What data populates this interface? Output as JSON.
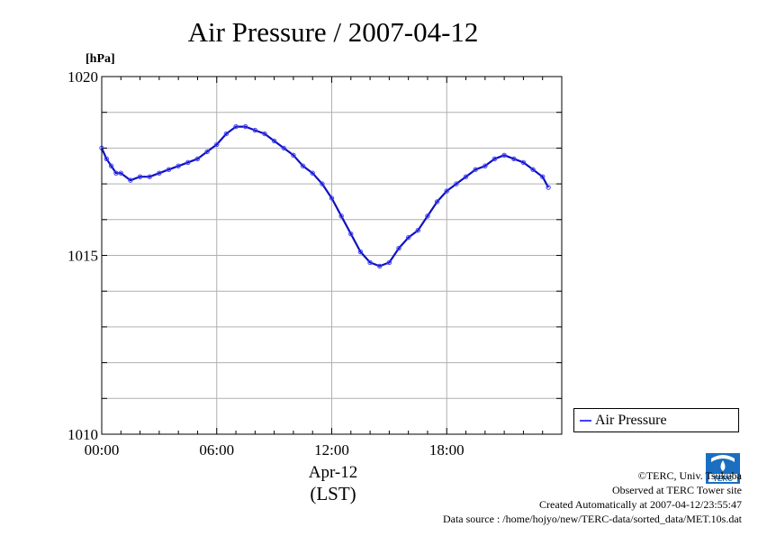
{
  "chart_data": {
    "type": "line",
    "title": "Air Pressure / 2007-04-12",
    "ylabel": "[hPa]",
    "xlabel_lines": [
      "Apr-12",
      "(LST)"
    ],
    "ylim": [
      1010,
      1020
    ],
    "xlim": [
      0,
      24
    ],
    "x_ticks": [
      0,
      6,
      12,
      18
    ],
    "x_tick_labels": [
      "00:00",
      "06:00",
      "12:00",
      "18:00"
    ],
    "y_ticks": [
      1010,
      1015,
      1020
    ],
    "y_tick_labels": [
      "1010",
      "1015",
      "1020"
    ],
    "y_grid_step": 1,
    "grid": true,
    "legend_position": "right",
    "series": [
      {
        "name": "Air Pressure",
        "color": "#4040ff",
        "x": [
          0,
          0.25,
          0.5,
          0.75,
          1.0,
          1.5,
          2.0,
          2.5,
          3.0,
          3.5,
          4.0,
          4.5,
          5.0,
          5.5,
          6.0,
          6.5,
          7.0,
          7.5,
          8.0,
          8.5,
          9.0,
          9.5,
          10.0,
          10.5,
          11.0,
          11.5,
          12.0,
          12.5,
          13.0,
          13.5,
          14.0,
          14.5,
          15.0,
          15.5,
          16.0,
          16.5,
          17.0,
          17.5,
          18.0,
          18.5,
          19.0,
          19.5,
          20.0,
          20.5,
          21.0,
          21.5,
          22.0,
          22.5,
          23.0,
          23.3
        ],
        "y": [
          1018.0,
          1017.7,
          1017.5,
          1017.3,
          1017.3,
          1017.1,
          1017.2,
          1017.2,
          1017.3,
          1017.4,
          1017.5,
          1017.6,
          1017.7,
          1017.9,
          1018.1,
          1018.4,
          1018.6,
          1018.6,
          1018.5,
          1018.4,
          1018.2,
          1018.0,
          1017.8,
          1017.5,
          1017.3,
          1017.0,
          1016.6,
          1016.1,
          1015.6,
          1015.1,
          1014.8,
          1014.7,
          1014.8,
          1015.2,
          1015.5,
          1015.7,
          1016.1,
          1016.5,
          1016.8,
          1017.0,
          1017.2,
          1017.4,
          1017.5,
          1017.7,
          1017.8,
          1017.7,
          1017.6,
          1017.4,
          1017.2,
          1016.9
        ]
      }
    ]
  },
  "credits": {
    "lines": [
      "©TERC, Univ. Tsukuba",
      "Observed at TERC Tower site",
      "Created Automatically at 2007-04-12/23:55:47",
      "Data source : /home/hojyo/new/TERC-data/sorted_data/MET.10s.dat"
    ],
    "logo_text": "TERC"
  }
}
